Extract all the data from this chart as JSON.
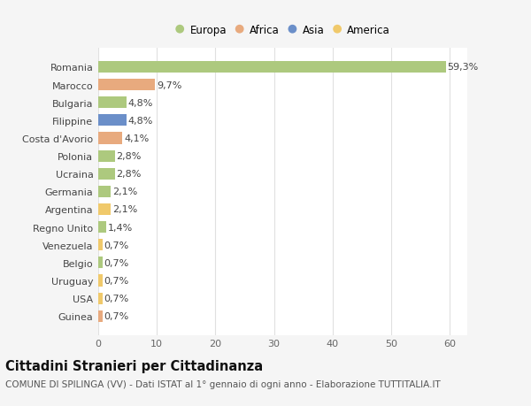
{
  "countries": [
    "Romania",
    "Marocco",
    "Bulgaria",
    "Filippine",
    "Costa d'Avorio",
    "Polonia",
    "Ucraina",
    "Germania",
    "Argentina",
    "Regno Unito",
    "Venezuela",
    "Belgio",
    "Uruguay",
    "USA",
    "Guinea"
  ],
  "values": [
    59.3,
    9.7,
    4.8,
    4.8,
    4.1,
    2.8,
    2.8,
    2.1,
    2.1,
    1.4,
    0.7,
    0.7,
    0.7,
    0.7,
    0.7
  ],
  "labels": [
    "59,3%",
    "9,7%",
    "4,8%",
    "4,8%",
    "4,1%",
    "2,8%",
    "2,8%",
    "2,1%",
    "2,1%",
    "1,4%",
    "0,7%",
    "0,7%",
    "0,7%",
    "0,7%",
    "0,7%"
  ],
  "continents": [
    "Europa",
    "Africa",
    "Europa",
    "Asia",
    "Africa",
    "Europa",
    "Europa",
    "Europa",
    "America",
    "Europa",
    "America",
    "Europa",
    "America",
    "America",
    "Africa"
  ],
  "continent_colors": {
    "Europa": "#adc97e",
    "Africa": "#e8aa7e",
    "Asia": "#6b8fc9",
    "America": "#f0c96b"
  },
  "legend_order": [
    "Europa",
    "Africa",
    "Asia",
    "America"
  ],
  "title": "Cittadini Stranieri per Cittadinanza",
  "subtitle": "COMUNE DI SPILINGA (VV) - Dati ISTAT al 1° gennaio di ogni anno - Elaborazione TUTTITALIA.IT",
  "xlim": [
    0,
    63
  ],
  "xticks": [
    0,
    10,
    20,
    30,
    40,
    50,
    60
  ],
  "background_color": "#f5f5f5",
  "plot_bg_color": "#ffffff",
  "grid_color": "#e0e0e0",
  "title_fontsize": 10.5,
  "subtitle_fontsize": 7.5,
  "label_fontsize": 8,
  "tick_fontsize": 8,
  "bar_height": 0.65
}
